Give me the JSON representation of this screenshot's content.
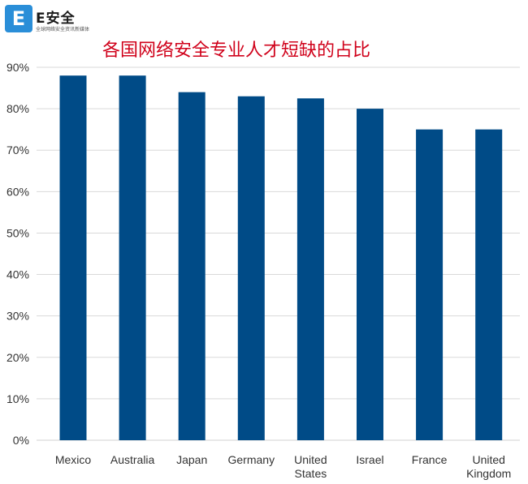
{
  "logo": {
    "badge": "E",
    "name": "E安全",
    "tagline": "全球网络安全资讯新媒体"
  },
  "chart_data": {
    "type": "bar",
    "title": "各国网络安全专业人才短缺的占比",
    "categories": [
      [
        "Mexico"
      ],
      [
        "Australia"
      ],
      [
        "Japan"
      ],
      [
        "Germany"
      ],
      [
        "United",
        "States"
      ],
      [
        "Israel"
      ],
      [
        "France"
      ],
      [
        "United",
        "Kingdom"
      ]
    ],
    "values": [
      88,
      88,
      84,
      83,
      82.5,
      80,
      75,
      75
    ],
    "y_ticks": [
      "0%",
      "10%",
      "20%",
      "30%",
      "40%",
      "50%",
      "60%",
      "70%",
      "80%",
      "90%"
    ],
    "ylim": [
      0,
      90
    ],
    "grid": true,
    "bar_color": "#004b87",
    "grid_color": "#d9d9d9"
  }
}
